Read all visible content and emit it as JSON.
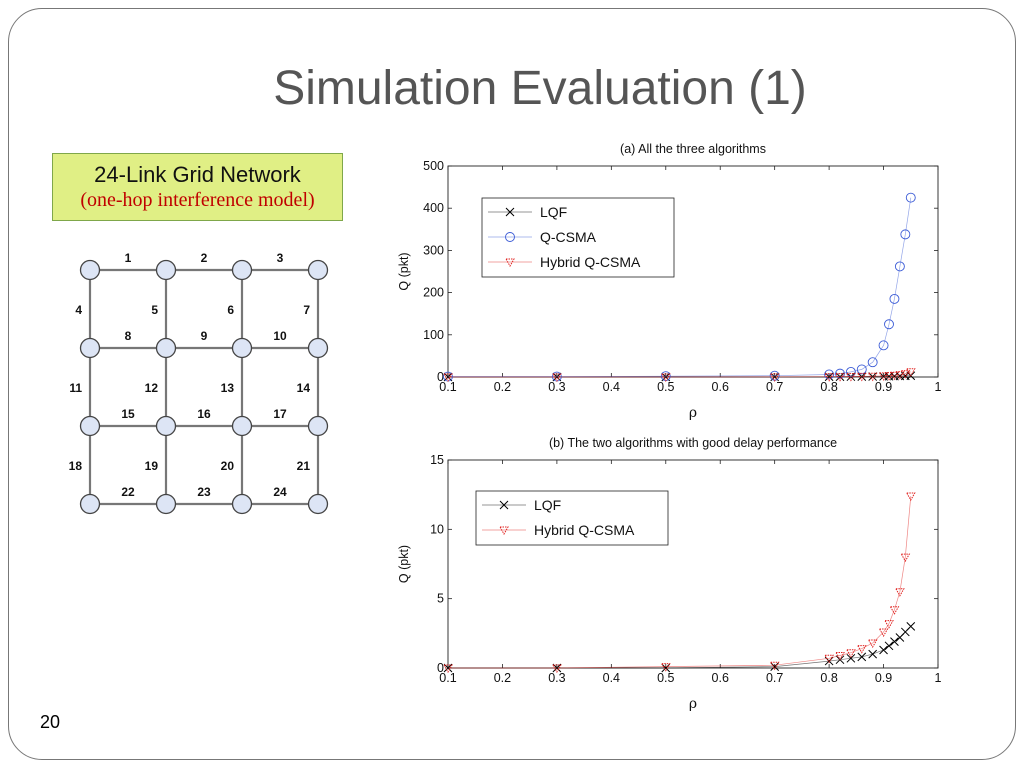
{
  "slide": {
    "title": "Simulation Evaluation (1)",
    "page_number": "20"
  },
  "caption": {
    "main": "24-Link Grid Network",
    "sub": "(one-hop interference model)"
  },
  "grid": {
    "rows": 4,
    "cols": 4,
    "horizontal_links": [
      [
        "1",
        "2",
        "3"
      ],
      [
        "8",
        "9",
        "10"
      ],
      [
        "15",
        "16",
        "17"
      ],
      [
        "22",
        "23",
        "24"
      ]
    ],
    "vertical_links": [
      [
        "4",
        "5",
        "6",
        "7"
      ],
      [
        "11",
        "12",
        "13",
        "14"
      ],
      [
        "18",
        "19",
        "20",
        "21"
      ]
    ]
  },
  "chart_data": [
    {
      "type": "line",
      "title": "(a) All the three algorithms",
      "xlabel": "ρ",
      "ylabel": "Q (pkt)",
      "xlim": [
        0.1,
        1
      ],
      "ylim": [
        0,
        500
      ],
      "xticks": [
        "0.1",
        "0.2",
        "0.3",
        "0.4",
        "0.5",
        "0.6",
        "0.7",
        "0.8",
        "0.9",
        "1"
      ],
      "yticks": [
        "0",
        "100",
        "200",
        "300",
        "400",
        "500"
      ],
      "legend_position": "top-left",
      "series": [
        {
          "name": "LQF",
          "color": "#000000",
          "marker": "x",
          "x": [
            0.1,
            0.3,
            0.5,
            0.7,
            0.8,
            0.82,
            0.84,
            0.86,
            0.88,
            0.9,
            0.91,
            0.92,
            0.93,
            0.94,
            0.95
          ],
          "y": [
            0,
            0,
            0,
            0.1,
            0.5,
            0.6,
            0.7,
            0.8,
            1.0,
            1.3,
            1.6,
            1.9,
            2.2,
            2.6,
            3.0
          ]
        },
        {
          "name": "Q-CSMA",
          "color": "#3b5bd6",
          "marker": "o",
          "x": [
            0.1,
            0.3,
            0.5,
            0.7,
            0.8,
            0.82,
            0.84,
            0.86,
            0.88,
            0.9,
            0.91,
            0.92,
            0.93,
            0.94,
            0.95
          ],
          "y": [
            1,
            1,
            2,
            3,
            6,
            8,
            12,
            18,
            35,
            75,
            125,
            185,
            262,
            338,
            425
          ]
        },
        {
          "name": "Hybrid Q-CSMA",
          "color": "#e0201e",
          "marker": "v",
          "x": [
            0.1,
            0.3,
            0.5,
            0.7,
            0.8,
            0.82,
            0.84,
            0.86,
            0.88,
            0.9,
            0.91,
            0.92,
            0.93,
            0.94,
            0.95
          ],
          "y": [
            0,
            0,
            0.1,
            0.2,
            0.7,
            0.9,
            1.1,
            1.4,
            1.8,
            2.6,
            3.2,
            4.2,
            5.5,
            8.0,
            12.4
          ]
        }
      ]
    },
    {
      "type": "line",
      "title": "(b) The two algorithms with good delay performance",
      "xlabel": "ρ",
      "ylabel": "Q (pkt)",
      "xlim": [
        0.1,
        1
      ],
      "ylim": [
        0,
        15
      ],
      "xticks": [
        "0.1",
        "0.2",
        "0.3",
        "0.4",
        "0.5",
        "0.6",
        "0.7",
        "0.8",
        "0.9",
        "1"
      ],
      "yticks": [
        "0",
        "5",
        "10",
        "15"
      ],
      "legend_position": "top-left",
      "series": [
        {
          "name": "LQF",
          "color": "#000000",
          "marker": "x",
          "x": [
            0.1,
            0.3,
            0.5,
            0.7,
            0.8,
            0.82,
            0.84,
            0.86,
            0.88,
            0.9,
            0.91,
            0.92,
            0.93,
            0.94,
            0.95
          ],
          "y": [
            0,
            0,
            0,
            0.1,
            0.5,
            0.6,
            0.7,
            0.8,
            1.0,
            1.3,
            1.6,
            1.9,
            2.2,
            2.6,
            3.0
          ]
        },
        {
          "name": "Hybrid Q-CSMA",
          "color": "#e0201e",
          "marker": "v",
          "x": [
            0.1,
            0.3,
            0.5,
            0.7,
            0.8,
            0.82,
            0.84,
            0.86,
            0.88,
            0.9,
            0.91,
            0.92,
            0.93,
            0.94,
            0.95
          ],
          "y": [
            0,
            0,
            0.1,
            0.2,
            0.7,
            0.9,
            1.1,
            1.4,
            1.8,
            2.6,
            3.2,
            4.2,
            5.5,
            8.0,
            12.4
          ]
        }
      ]
    }
  ]
}
